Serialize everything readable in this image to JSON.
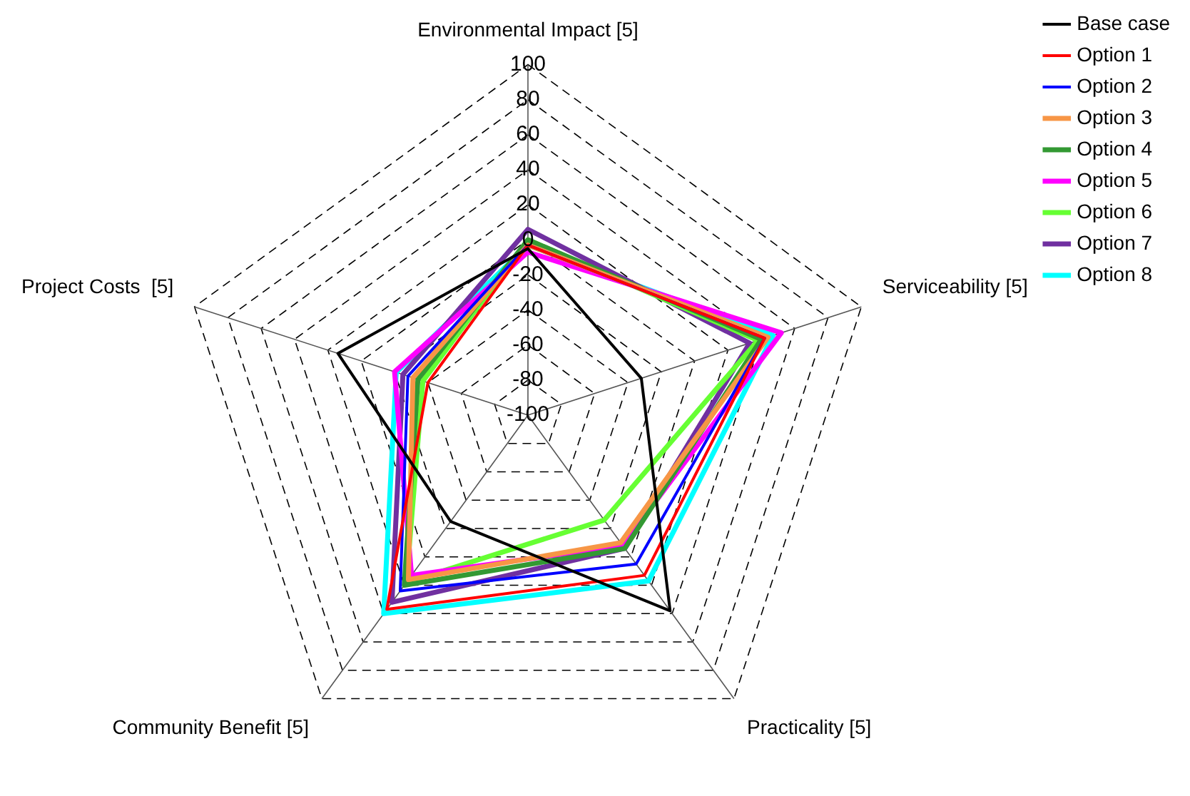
{
  "chart_data": {
    "type": "radar",
    "categories": [
      "Environmental Impact [5]",
      "Serviceability [5]",
      "Practicality [5]",
      "Community Benefit [5]",
      "Project Costs  [5]"
    ],
    "ylim": [
      -100,
      100
    ],
    "yticks": [
      -100,
      -80,
      -60,
      -40,
      -20,
      0,
      20,
      40,
      60,
      80,
      100
    ],
    "grid": true,
    "legend": "top right",
    "marker": "none",
    "line_style": "solid",
    "series": [
      {
        "name": "Base case",
        "color": "#000000",
        "values": [
          -5,
          -32,
          38,
          -25,
          14
        ]
      },
      {
        "name": "Option 1",
        "color": "#ff0000",
        "values": [
          -3,
          42,
          13,
          37,
          -40
        ]
      },
      {
        "name": "Option 2",
        "color": "#0000ff",
        "values": [
          -3,
          42,
          5,
          24,
          -28
        ]
      },
      {
        "name": "Option 3",
        "color": "#f79646",
        "values": [
          -3,
          44,
          -10,
          16,
          -31
        ]
      },
      {
        "name": "Option 4",
        "color": "#339933",
        "values": [
          0,
          40,
          -6,
          20,
          -34
        ]
      },
      {
        "name": "Option 5",
        "color": "#ff00ff",
        "values": [
          -7,
          52,
          -8,
          13,
          -20
        ]
      },
      {
        "name": "Option 6",
        "color": "#66ff33",
        "values": [
          0,
          38,
          -26,
          18,
          -37
        ]
      },
      {
        "name": "Option 7",
        "color": "#7030a0",
        "values": [
          6,
          33,
          -6,
          32,
          -25
        ]
      },
      {
        "name": "Option 8",
        "color": "#00ffff",
        "values": [
          -3,
          47,
          17,
          40,
          -21
        ]
      }
    ]
  }
}
